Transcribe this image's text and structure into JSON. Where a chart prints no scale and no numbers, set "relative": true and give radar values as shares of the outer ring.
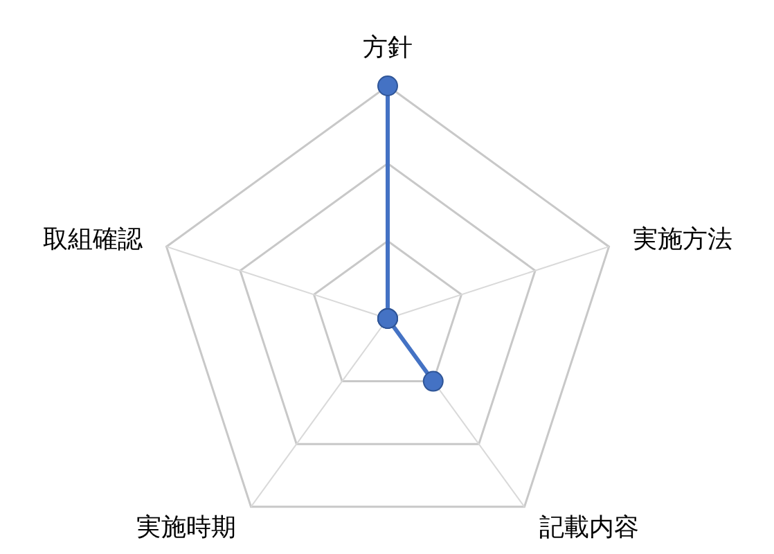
{
  "chart_data": {
    "type": "radar",
    "categories": [
      "方針",
      "実施方法",
      "記載内容",
      "実施時期",
      "取組確認"
    ],
    "relative": true,
    "grid": true,
    "marker": "circle",
    "series": [
      {
        "color": "#4472c4",
        "values": [
          1,
          0,
          0.333,
          0,
          0
        ]
      }
    ]
  }
}
